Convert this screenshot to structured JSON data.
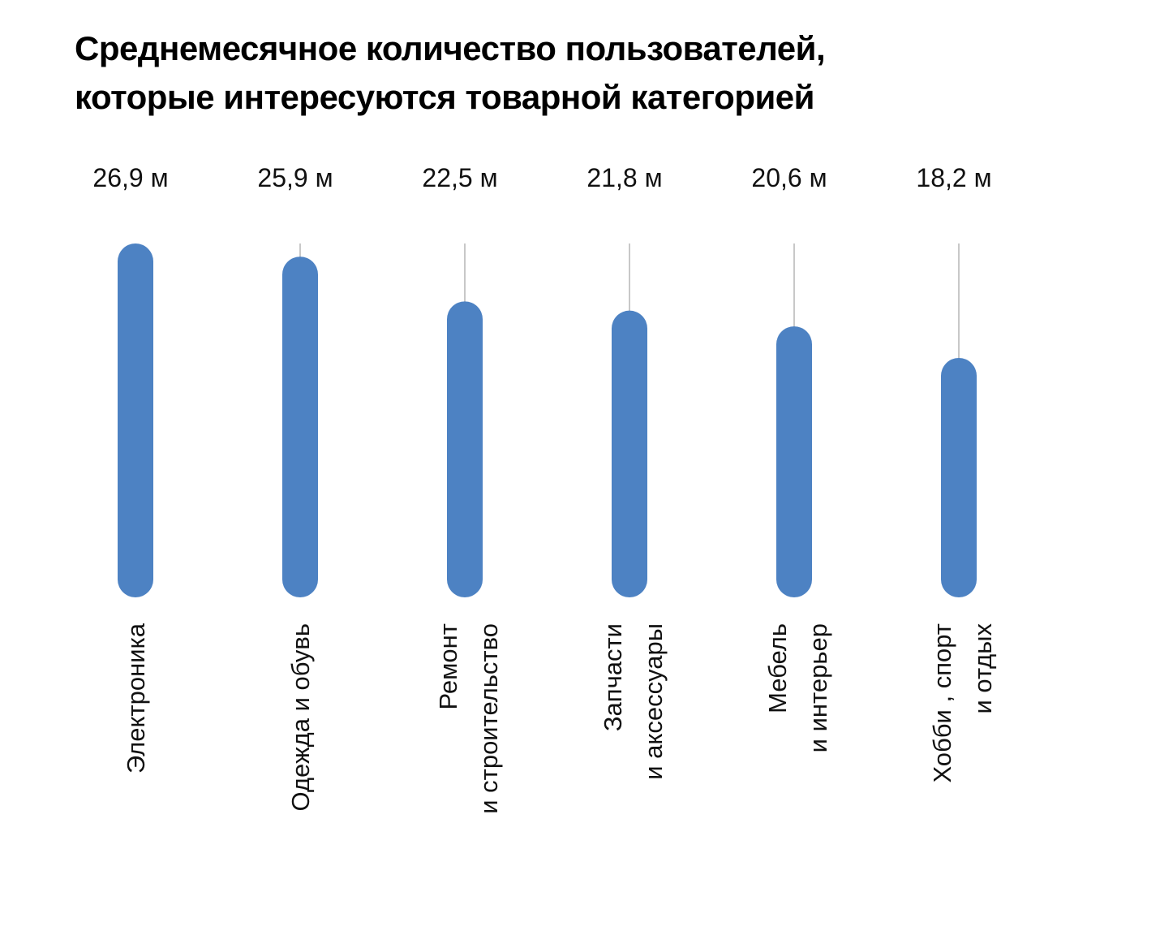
{
  "chart_data": {
    "type": "bar",
    "title": "Среднемесячное количество пользователей, которые интересуются товарной категорией",
    "title_lines": [
      "Среднемесячное количество пользователей,",
      "которые интересуются товарной категорией"
    ],
    "categories": [
      "Электроника",
      "Одежда и обувь",
      "Ремонт и строительство",
      "Запчасти и аксессуары",
      "Мебель и интерьер",
      "Хобби , спорт и отдых"
    ],
    "category_lines": [
      [
        "Электроника"
      ],
      [
        "Одежда и обувь"
      ],
      [
        "Ремонт",
        "и строительство"
      ],
      [
        "Запчасти",
        "и аксессуары"
      ],
      [
        "Мебель",
        "и интерьер"
      ],
      [
        "Хобби , спорт",
        "и отдых"
      ]
    ],
    "values": [
      26.9,
      25.9,
      22.5,
      21.8,
      20.6,
      18.2
    ],
    "value_labels": [
      "26,9 м",
      "25,9 м",
      "22,5 м",
      "21,8 м",
      "20,6 м",
      "18,2 м"
    ],
    "unit": "м",
    "xlabel": "",
    "ylabel": "",
    "ylim": [
      0,
      26.9
    ],
    "grid": false,
    "legend": "none",
    "orientation": "vertical",
    "category_label_rotation": "vertical",
    "colors": {
      "bar": "#4D82C3",
      "leader_line": "#B5B5B5",
      "text": "#111111"
    }
  }
}
